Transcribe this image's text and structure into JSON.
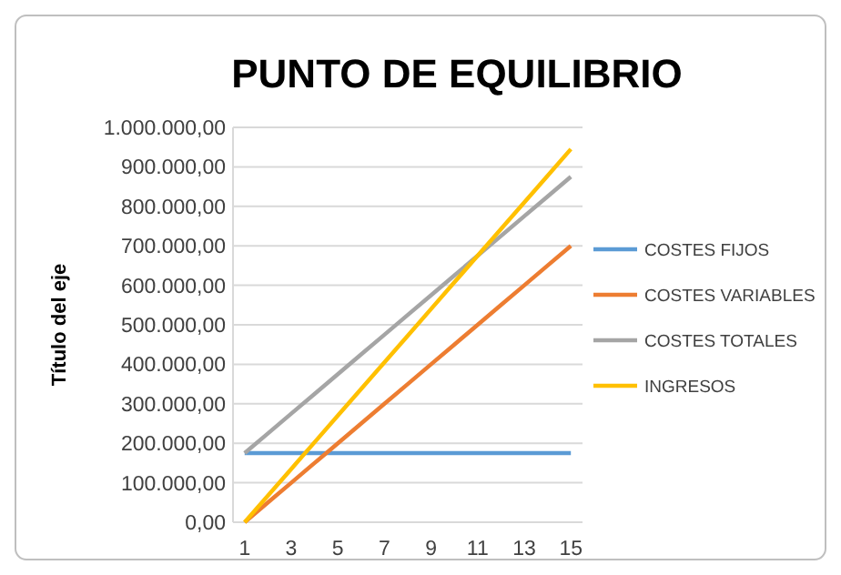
{
  "chart_data": {
    "type": "line",
    "title": "PUNTO DE EQUILIBRIO",
    "ylabel": "Título del eje",
    "x": [
      1,
      2,
      3,
      4,
      5,
      6,
      7,
      8,
      9,
      10,
      11,
      12,
      13,
      14,
      15
    ],
    "xlim": [
      0.5,
      15.5
    ],
    "xticks": [
      1,
      3,
      5,
      7,
      9,
      11,
      13,
      15
    ],
    "series": [
      {
        "name": "COSTES FIJOS",
        "color": "#5b9bd5",
        "values": [
          175000,
          175000,
          175000,
          175000,
          175000,
          175000,
          175000,
          175000,
          175000,
          175000,
          175000,
          175000,
          175000,
          175000,
          175000
        ]
      },
      {
        "name": "COSTES VARIABLES",
        "color": "#ed7d31",
        "values": [
          0,
          50000,
          100000,
          150000,
          200000,
          250000,
          300000,
          350000,
          400000,
          450000,
          500000,
          550000,
          600000,
          650000,
          700000
        ]
      },
      {
        "name": "COSTES TOTALES",
        "color": "#a5a5a5",
        "values": [
          175000,
          225000,
          275000,
          325000,
          375000,
          425000,
          475000,
          525000,
          575000,
          625000,
          675000,
          725000,
          775000,
          825000,
          875000
        ]
      },
      {
        "name": "INGRESOS",
        "color": "#ffc000",
        "values": [
          0,
          67500,
          135000,
          202500,
          270000,
          337500,
          405000,
          472500,
          540000,
          607500,
          675000,
          742500,
          810000,
          877500,
          945000
        ]
      }
    ],
    "ylim": [
      0,
      1000000
    ],
    "yticks": [
      {
        "value": 0,
        "label": "0,00"
      },
      {
        "value": 100000,
        "label": "100.000,00"
      },
      {
        "value": 200000,
        "label": "200.000,00"
      },
      {
        "value": 300000,
        "label": "300.000,00"
      },
      {
        "value": 400000,
        "label": "400.000,00"
      },
      {
        "value": 500000,
        "label": "500.000,00"
      },
      {
        "value": 600000,
        "label": "600.000,00"
      },
      {
        "value": 700000,
        "label": "700.000,00"
      },
      {
        "value": 800000,
        "label": "800.000,00"
      },
      {
        "value": 900000,
        "label": "900.000,00"
      },
      {
        "value": 1000000,
        "label": "1.000.000,00"
      }
    ],
    "grid": "y",
    "legend": "right",
    "marker": "none",
    "line_style": "solid"
  }
}
